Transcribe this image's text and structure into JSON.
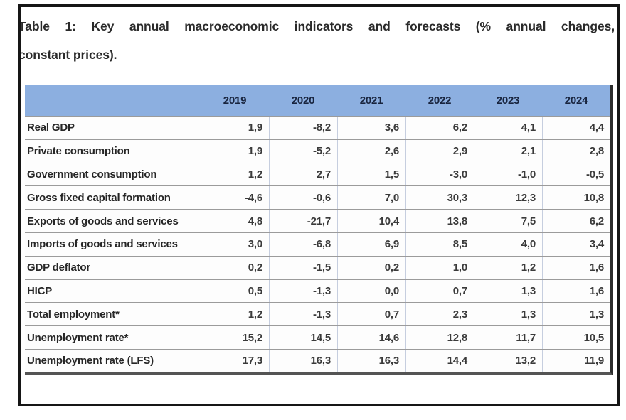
{
  "caption": {
    "line1": "Table 1: Key annual macroeconomic indicators and forecasts (% annual changes,",
    "line2": "constant prices)."
  },
  "chart_data": {
    "type": "table",
    "title": "Table 1: Key annual macroeconomic indicators and forecasts (% annual changes, constant prices).",
    "columns": [
      "",
      "2019",
      "2020",
      "2021",
      "2022",
      "2023",
      "2024"
    ],
    "rows": [
      {
        "label": "Real GDP",
        "values": [
          "1,9",
          "-8,2",
          "3,6",
          "6,2",
          "4,1",
          "4,4"
        ]
      },
      {
        "label": "Private consumption",
        "values": [
          "1,9",
          "-5,2",
          "2,6",
          "2,9",
          "2,1",
          "2,8"
        ]
      },
      {
        "label": "Government consumption",
        "values": [
          "1,2",
          "2,7",
          "1,5",
          "-3,0",
          "-1,0",
          "-0,5"
        ]
      },
      {
        "label": "Gross fixed capital formation",
        "values": [
          "-4,6",
          "-0,6",
          "7,0",
          "30,3",
          "12,3",
          "10,8"
        ]
      },
      {
        "label": "Exports of goods and services",
        "values": [
          "4,8",
          "-21,7",
          "10,4",
          "13,8",
          "7,5",
          "6,2"
        ]
      },
      {
        "label": "Imports of goods and services",
        "values": [
          "3,0",
          "-6,8",
          "6,9",
          "8,5",
          "4,0",
          "3,4"
        ]
      },
      {
        "label": "GDP deflator",
        "values": [
          "0,2",
          "-1,5",
          "0,2",
          "1,0",
          "1,2",
          "1,6"
        ]
      },
      {
        "label": "HICP",
        "values": [
          "0,5",
          "-1,3",
          "0,0",
          "0,7",
          "1,3",
          "1,6"
        ]
      },
      {
        "label": "Total employment*",
        "values": [
          "1,2",
          "-1,3",
          "0,7",
          "2,3",
          "1,3",
          "1,3"
        ]
      },
      {
        "label": "Unemployment rate*",
        "values": [
          "15,2",
          "14,5",
          "14,6",
          "12,8",
          "11,7",
          "10,5"
        ]
      },
      {
        "label": "Unemployment rate (LFS)",
        "values": [
          "17,3",
          "16,3",
          "16,3",
          "14,4",
          "13,2",
          "11,9"
        ]
      }
    ]
  },
  "table": {
    "years": [
      "2019",
      "2020",
      "2021",
      "2022",
      "2023",
      "2024"
    ]
  },
  "colors": {
    "header_bg": "#8cafe0",
    "header_text": "#18243e",
    "frame_border": "#161616",
    "table_right_border": "#2b2b2b",
    "table_bottom_border": "#545454"
  }
}
